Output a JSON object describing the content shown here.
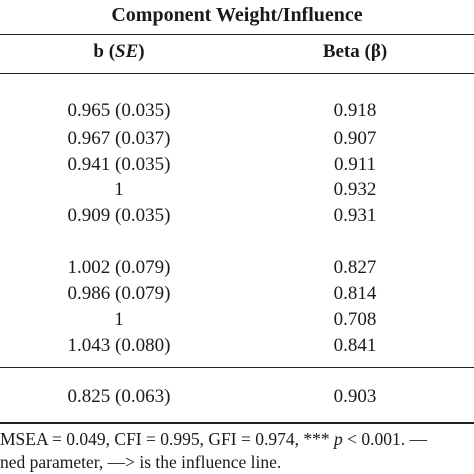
{
  "table": {
    "group_header": "Component Weight/Influence",
    "columns": {
      "b": {
        "prefix": "b (",
        "italic": "SE",
        "suffix": ")"
      },
      "beta": "Beta (β)"
    },
    "groups": [
      {
        "rows": [
          {
            "b": "0.965 (0.035)",
            "beta": "0.918"
          },
          {
            "b": "0.967 (0.037)",
            "beta": "0.907"
          },
          {
            "b": "0.941 (0.035)",
            "beta": "0.911"
          },
          {
            "b": "1",
            "beta": "0.932"
          },
          {
            "b": "0.909 (0.035)",
            "beta": "0.931"
          }
        ]
      },
      {
        "rows": [
          {
            "b": "1.002 (0.079)",
            "beta": "0.827"
          },
          {
            "b": "0.986 (0.079)",
            "beta": "0.814"
          },
          {
            "b": "1",
            "beta": "0.708"
          },
          {
            "b": "1.043 (0.080)",
            "beta": "0.841"
          }
        ]
      },
      {
        "rows": [
          {
            "b": "0.825 (0.063)",
            "beta": "0.903"
          }
        ]
      }
    ]
  },
  "footnote": {
    "line1_a": "MSEA = 0.049, CFI = 0.995, GFI = 0.974, *** ",
    "line1_italic": "p",
    "line1_b": " < 0.001. —",
    "line2": "ned parameter, —> is the influence line."
  }
}
